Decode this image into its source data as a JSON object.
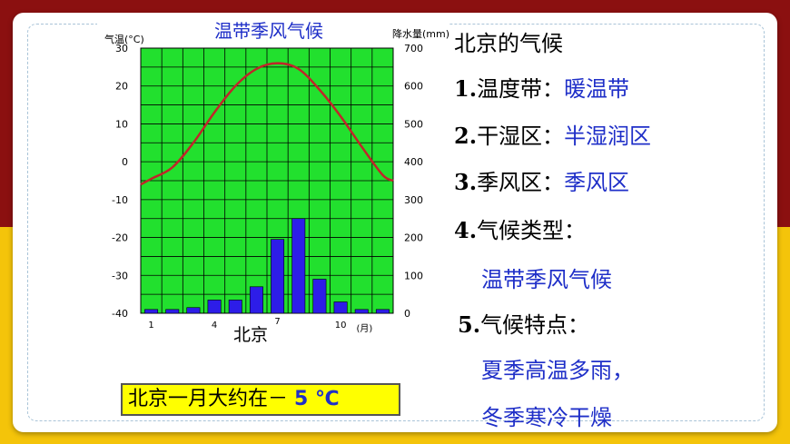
{
  "chart_data": {
    "type": "bar+line",
    "title": "温带季风气候",
    "y_left_label": "气温(°C)",
    "y_right_label": "降水量(mm)",
    "x_unit_label": "(月)",
    "location_label": "北京",
    "months": [
      1,
      2,
      3,
      4,
      5,
      6,
      7,
      8,
      9,
      10,
      11,
      12
    ],
    "x_tick_labels": [
      "1",
      "4",
      "7",
      "10"
    ],
    "temperature_c": [
      -4.5,
      -1.5,
      5,
      13,
      20,
      24.5,
      26,
      24.5,
      19,
      12,
      4,
      -3.5
    ],
    "precipitation_mm": [
      10,
      10,
      15,
      35,
      35,
      70,
      195,
      250,
      90,
      30,
      10,
      10
    ],
    "temp_ylim": [
      -40,
      30
    ],
    "precip_ylim": [
      0,
      700
    ],
    "temp_ticks": [
      30,
      20,
      10,
      0,
      -10,
      -20,
      -30,
      -40
    ],
    "precip_ticks": [
      700,
      600,
      500,
      400,
      300,
      200,
      100,
      0
    ],
    "colors": {
      "plot_bg": "#22e02e",
      "grid": "#000000",
      "bar": "#2d1de8",
      "line": "#c0262a",
      "title": "#1f2fc8"
    }
  },
  "info": {
    "heading": "北京的气候",
    "items": [
      {
        "num": "1.",
        "label": "温度带：",
        "value": "暖温带"
      },
      {
        "num": "2.",
        "label": "干湿区：",
        "value": "半湿润区"
      },
      {
        "num": "3.",
        "label": "季风区：",
        "value": "季风区"
      },
      {
        "num": "4.",
        "label": "气候类型：",
        "value": "温带季风气候"
      },
      {
        "num": "5.",
        "label": "气候特点：",
        "value1": "夏季高温多雨，",
        "value2": "冬季寒冷干燥"
      }
    ]
  },
  "note": {
    "prefix": "北京一月大约在－ ",
    "value": "5",
    "unit": " ℃"
  }
}
